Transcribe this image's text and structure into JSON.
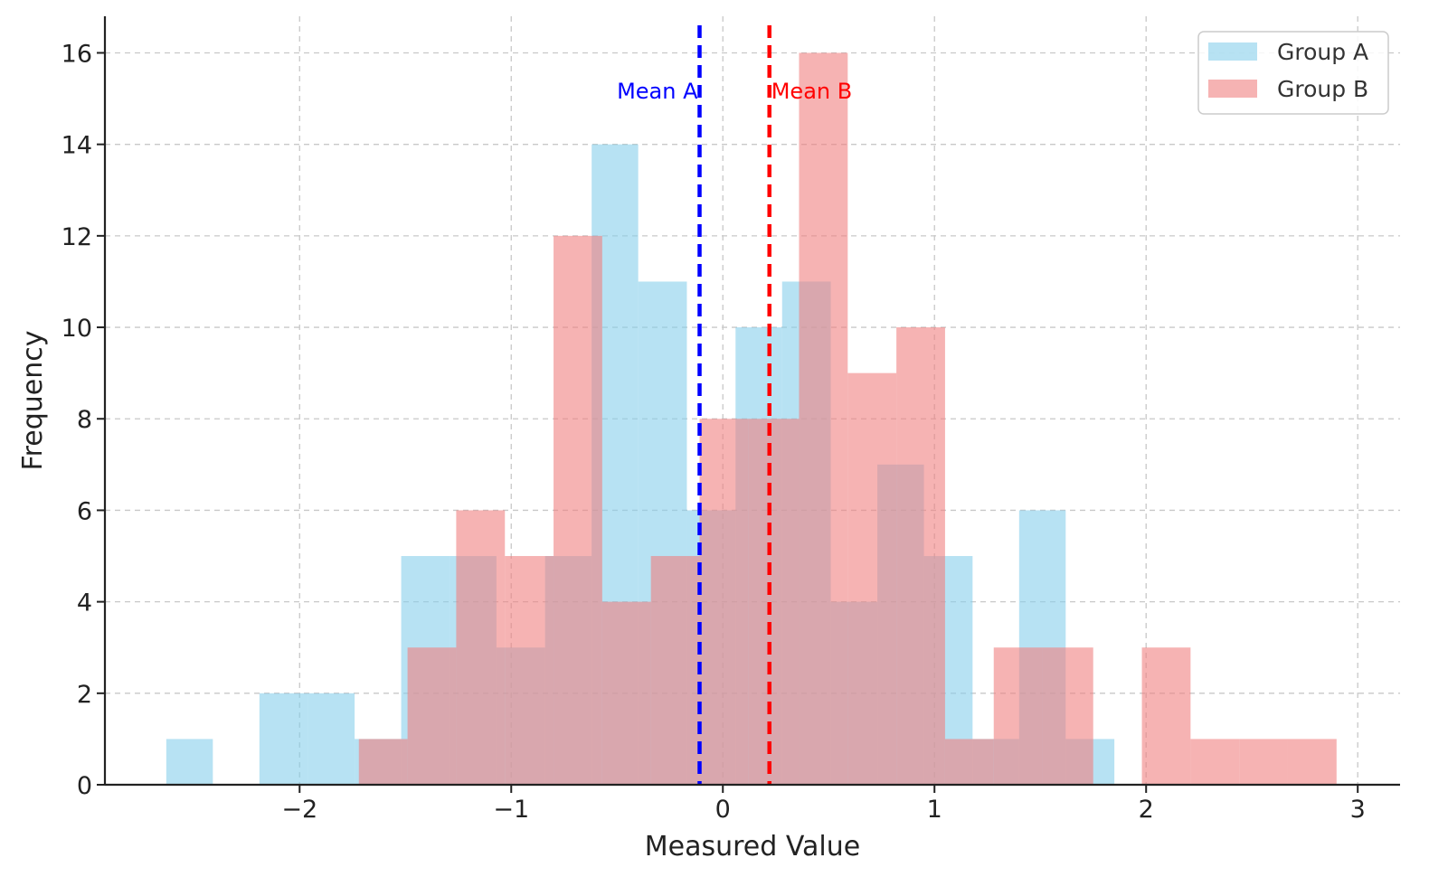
{
  "chart_data": {
    "type": "bar",
    "subtype": "overlapping histogram",
    "xlabel": "Measured Value",
    "ylabel": "Frequency",
    "xlim": [
      -2.92,
      3.2
    ],
    "ylim": [
      0,
      16.8
    ],
    "xticks": [
      -2,
      -1,
      0,
      1,
      2,
      3
    ],
    "xtick_labels": [
      "−2",
      "−1",
      "0",
      "1",
      "2",
      "3"
    ],
    "yticks": [
      0,
      2,
      4,
      6,
      8,
      10,
      12,
      14,
      16
    ],
    "ytick_labels": [
      "0",
      "2",
      "4",
      "6",
      "8",
      "10",
      "12",
      "14",
      "16"
    ],
    "grid": true,
    "legend": "top-right",
    "series": [
      {
        "name": "Group A",
        "color": "#87CEEB",
        "bins": [
          {
            "x0": -2.63,
            "x1": -2.41,
            "count": 1
          },
          {
            "x0": -2.41,
            "x1": -2.19,
            "count": 0
          },
          {
            "x0": -2.19,
            "x1": -1.96,
            "count": 2
          },
          {
            "x0": -1.96,
            "x1": -1.74,
            "count": 2
          },
          {
            "x0": -1.74,
            "x1": -1.52,
            "count": 1
          },
          {
            "x0": -1.52,
            "x1": -1.29,
            "count": 5
          },
          {
            "x0": -1.29,
            "x1": -1.07,
            "count": 5
          },
          {
            "x0": -1.07,
            "x1": -0.84,
            "count": 3
          },
          {
            "x0": -0.84,
            "x1": -0.62,
            "count": 5
          },
          {
            "x0": -0.62,
            "x1": -0.4,
            "count": 14
          },
          {
            "x0": -0.4,
            "x1": -0.17,
            "count": 11
          },
          {
            "x0": -0.17,
            "x1": 0.06,
            "count": 6
          },
          {
            "x0": 0.06,
            "x1": 0.28,
            "count": 10
          },
          {
            "x0": 0.28,
            "x1": 0.51,
            "count": 11
          },
          {
            "x0": 0.51,
            "x1": 0.73,
            "count": 4
          },
          {
            "x0": 0.73,
            "x1": 0.95,
            "count": 7
          },
          {
            "x0": 0.95,
            "x1": 1.18,
            "count": 5
          },
          {
            "x0": 1.18,
            "x1": 1.4,
            "count": 1
          },
          {
            "x0": 1.4,
            "x1": 1.62,
            "count": 6
          },
          {
            "x0": 1.62,
            "x1": 1.85,
            "count": 1
          }
        ],
        "mean": -0.11,
        "mean_label": "Mean A",
        "mean_color": "#0000FF"
      },
      {
        "name": "Group B",
        "color": "#F08080",
        "bins": [
          {
            "x0": -1.72,
            "x1": -1.49,
            "count": 1
          },
          {
            "x0": -1.49,
            "x1": -1.26,
            "count": 3
          },
          {
            "x0": -1.26,
            "x1": -1.03,
            "count": 6
          },
          {
            "x0": -1.03,
            "x1": -0.8,
            "count": 5
          },
          {
            "x0": -0.8,
            "x1": -0.57,
            "count": 12
          },
          {
            "x0": -0.57,
            "x1": -0.34,
            "count": 4
          },
          {
            "x0": -0.34,
            "x1": -0.11,
            "count": 5
          },
          {
            "x0": -0.11,
            "x1": 0.12,
            "count": 8
          },
          {
            "x0": 0.12,
            "x1": 0.36,
            "count": 8
          },
          {
            "x0": 0.36,
            "x1": 0.59,
            "count": 16
          },
          {
            "x0": 0.59,
            "x1": 0.82,
            "count": 9
          },
          {
            "x0": 0.82,
            "x1": 1.05,
            "count": 10
          },
          {
            "x0": 1.05,
            "x1": 1.28,
            "count": 1
          },
          {
            "x0": 1.28,
            "x1": 1.51,
            "count": 3
          },
          {
            "x0": 1.51,
            "x1": 1.75,
            "count": 3
          },
          {
            "x0": 1.75,
            "x1": 1.98,
            "count": 0
          },
          {
            "x0": 1.98,
            "x1": 2.21,
            "count": 3
          },
          {
            "x0": 2.21,
            "x1": 2.44,
            "count": 1
          },
          {
            "x0": 2.44,
            "x1": 2.67,
            "count": 1
          },
          {
            "x0": 2.67,
            "x1": 2.9,
            "count": 1
          }
        ],
        "mean": 0.22,
        "mean_label": "Mean B",
        "mean_color": "#FF0000"
      }
    ],
    "bar_opacity": 0.6
  }
}
